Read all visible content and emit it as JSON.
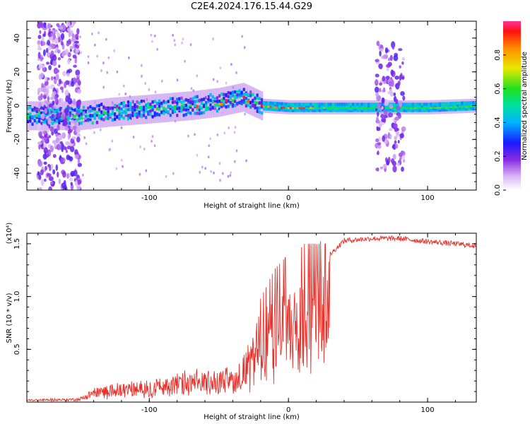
{
  "title": "C2E4.2024.176.15.44.G29",
  "chart_data": [
    {
      "type": "heatmap",
      "xlabel": "Height of straight line (km)",
      "ylabel": "Frequency (Hz)",
      "xlim": [
        -188,
        135
      ],
      "ylim": [
        -50,
        50
      ],
      "xticks": [
        "-100",
        "0",
        "100"
      ],
      "yticks": [
        "-40",
        "-20",
        "0",
        "20",
        "40"
      ],
      "ridge_center_hz": [
        {
          "x": -180,
          "y": -6
        },
        {
          "x": -150,
          "y": -6
        },
        {
          "x": -130,
          "y": -4
        },
        {
          "x": -100,
          "y": -2
        },
        {
          "x": -70,
          "y": 0
        },
        {
          "x": -50,
          "y": 2
        },
        {
          "x": -33,
          "y": 5
        },
        {
          "x": -20,
          "y": 0
        },
        {
          "x": 0,
          "y": -1
        },
        {
          "x": 20,
          "y": -1
        },
        {
          "x": 60,
          "y": -1
        },
        {
          "x": 100,
          "y": -1
        },
        {
          "x": 135,
          "y": 0
        }
      ],
      "colorbar": {
        "label": "Normalized spectral amplitude",
        "range": [
          0.0,
          1.0
        ],
        "ticks": [
          "0.0",
          "0.2",
          "0.4",
          "0.6",
          "0.8"
        ]
      }
    },
    {
      "type": "line",
      "xlabel": "Height of straight line (km)",
      "ylabel": "SNR (10 * v/v)",
      "y_multiplier": "(x10⁴)",
      "xlim": [
        -188,
        135
      ],
      "ylim": [
        0,
        1.6
      ],
      "xticks": [
        "-100",
        "0",
        "100"
      ],
      "yticks": [
        "0.5",
        "1.0",
        "1.5"
      ],
      "series_color": "#e8302a",
      "snr_envelope_x1e4": [
        {
          "x": -188,
          "y": 0.02
        },
        {
          "x": -150,
          "y": 0.03
        },
        {
          "x": -140,
          "y": 0.12
        },
        {
          "x": -120,
          "y": 0.15
        },
        {
          "x": -100,
          "y": 0.18
        },
        {
          "x": -80,
          "y": 0.22
        },
        {
          "x": -60,
          "y": 0.25
        },
        {
          "x": -40,
          "y": 0.28
        },
        {
          "x": -30,
          "y": 0.4
        },
        {
          "x": -20,
          "y": 0.7
        },
        {
          "x": -10,
          "y": 0.9
        },
        {
          "x": 0,
          "y": 1.0
        },
        {
          "x": 10,
          "y": 1.05
        },
        {
          "x": 20,
          "y": 1.2
        },
        {
          "x": 30,
          "y": 1.4
        },
        {
          "x": 40,
          "y": 1.53
        },
        {
          "x": 60,
          "y": 1.55
        },
        {
          "x": 80,
          "y": 1.55
        },
        {
          "x": 100,
          "y": 1.52
        },
        {
          "x": 120,
          "y": 1.5
        },
        {
          "x": 135,
          "y": 1.48
        }
      ]
    }
  ]
}
